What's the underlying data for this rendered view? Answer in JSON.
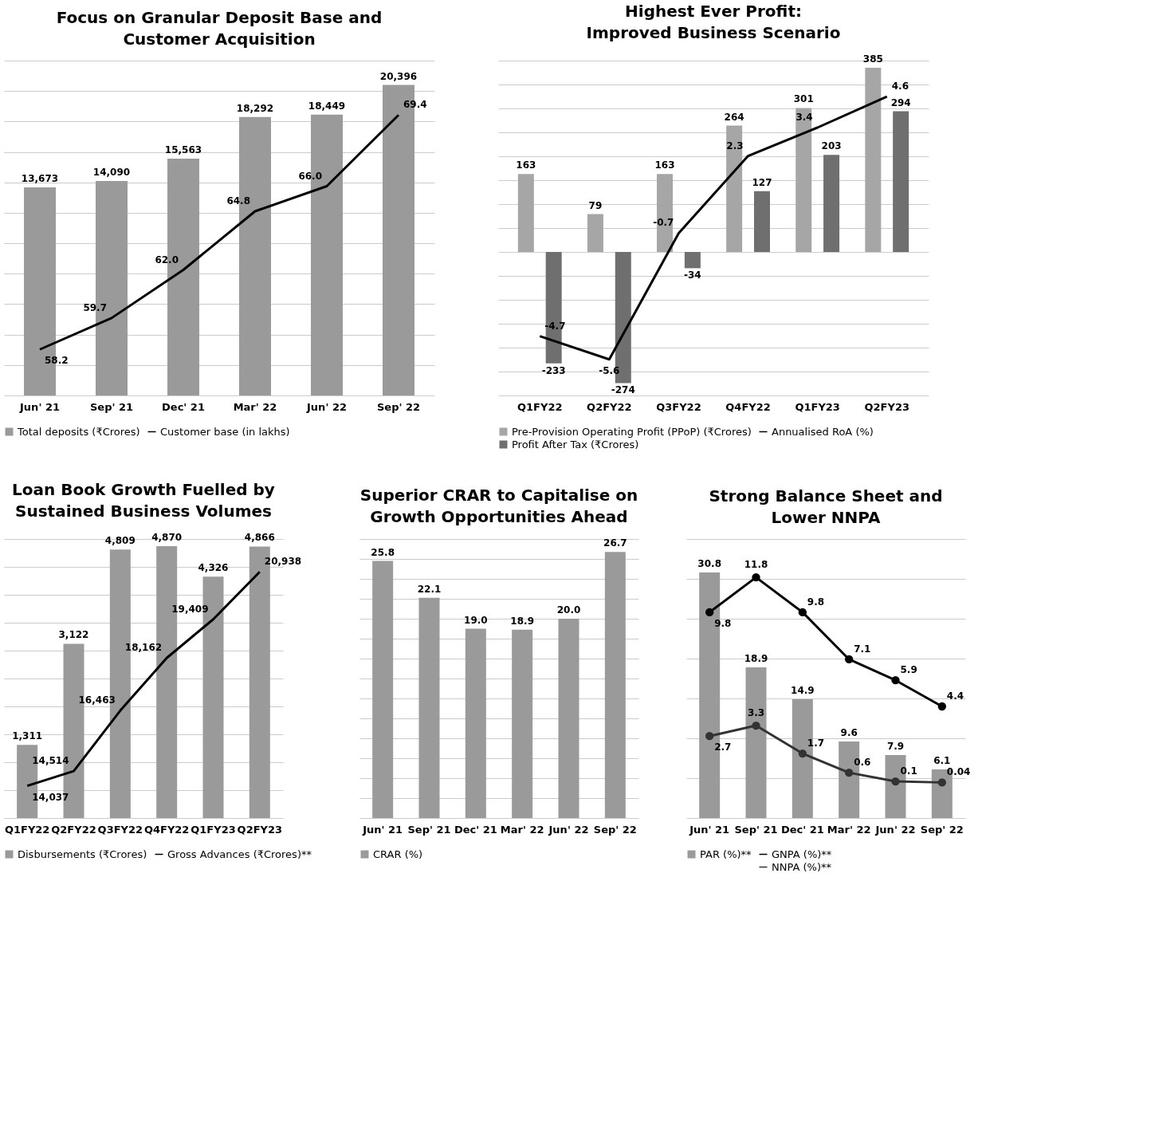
{
  "chart_data": [
    {
      "type": "bar",
      "title": "Focus on Granular Deposit Base and\nCustomer Acquisition",
      "categories": [
        "Jun' 21",
        "Sep' 21",
        "Dec' 21",
        "Mar' 22",
        "Jun' 22",
        "Sep' 22"
      ],
      "legend": "bottom",
      "grid": "y",
      "tick_labels": "x",
      "series": [
        {
          "name": "Total deposits (₹Crores)",
          "type": "bar",
          "color": "#9a9a9a",
          "values": [
            13673,
            14090,
            15563,
            18292,
            18449,
            20396
          ],
          "value_labels": [
            "13,673",
            "14,090",
            "15,563",
            "18,292",
            "18,449",
            "20,396"
          ]
        },
        {
          "name": "Customer base (in lakhs)",
          "type": "line",
          "axis": "y2",
          "color": "#000000",
          "values": [
            58.2,
            59.7,
            62.0,
            64.8,
            66.0,
            69.4
          ],
          "value_labels": [
            "58.2",
            "59.7",
            "62.0",
            "64.8",
            "66.0",
            "69.4"
          ]
        }
      ]
    },
    {
      "type": "bar",
      "title": "Highest Ever Profit:\nImproved Business Scenario",
      "categories": [
        "Q1FY22",
        "Q2FY22",
        "Q3FY22",
        "Q4FY22",
        "Q1FY23",
        "Q2FY23"
      ],
      "legend": "bottom",
      "grid": "y",
      "tick_labels": "x",
      "series": [
        {
          "name": "Pre-Provision Operating Profit (PPoP) (₹Crores)",
          "type": "bar",
          "color": "#a6a6a6",
          "values": [
            163,
            79,
            163,
            264,
            301,
            385
          ],
          "value_labels": [
            "163",
            "79",
            "163",
            "264",
            "301",
            "385"
          ]
        },
        {
          "name": "Profit After Tax (₹Crores)",
          "type": "bar",
          "color": "#6f6f6f",
          "values": [
            -233,
            -274,
            -34,
            127,
            203,
            294
          ],
          "value_labels": [
            "-233",
            "-274",
            "-34",
            "127",
            "203",
            "294"
          ]
        },
        {
          "name": "Annualised RoA (%)",
          "type": "line",
          "axis": "y2",
          "color": "#000000",
          "values": [
            -4.7,
            -5.6,
            -0.7,
            2.3,
            3.4,
            4.6
          ],
          "value_labels": [
            "-4.7",
            "-5.6",
            "-0.7",
            "2.3",
            "3.4",
            "4.6"
          ]
        }
      ]
    },
    {
      "type": "bar",
      "title": "Loan Book Growth Fuelled by\nSustained Business Volumes",
      "categories": [
        "Q1FY22",
        "Q2FY22",
        "Q3FY22",
        "Q4FY22",
        "Q1FY23",
        "Q2FY23"
      ],
      "legend": "bottom",
      "grid": "y",
      "tick_labels": "x",
      "series": [
        {
          "name": "Disbursements (₹Crores)",
          "type": "bar",
          "color": "#9a9a9a",
          "values": [
            1311,
            3122,
            4809,
            4870,
            4326,
            4866
          ],
          "value_labels": [
            "1,311",
            "3,122",
            "4,809",
            "4,870",
            "4,326",
            "4,866"
          ]
        },
        {
          "name": "Gross Advances (₹Crores)**",
          "type": "line",
          "axis": "y2",
          "color": "#000000",
          "values": [
            14037,
            14514,
            16463,
            18162,
            19409,
            20938
          ],
          "value_labels": [
            "14,037",
            "14,514",
            "16,463",
            "18,162",
            "19,409",
            "20,938"
          ]
        }
      ]
    },
    {
      "type": "bar",
      "title": "Superior CRAR to Capitalise on\nGrowth Opportunities Ahead",
      "categories": [
        "Jun' 21",
        "Sep' 21",
        "Dec' 21",
        "Mar' 22",
        "Jun' 22",
        "Sep' 22"
      ],
      "legend": "bottom",
      "grid": "y",
      "tick_labels": "x",
      "series": [
        {
          "name": "CRAR (%)",
          "type": "bar",
          "color": "#9a9a9a",
          "values": [
            25.8,
            22.1,
            19.0,
            18.9,
            20.0,
            26.7
          ],
          "value_labels": [
            "25.8",
            "22.1",
            "19.0",
            "18.9",
            "20.0",
            "26.7"
          ]
        }
      ]
    },
    {
      "type": "bar",
      "title": "Strong Balance Sheet and\nLower NNPA",
      "categories": [
        "Jun' 21",
        "Sep' 21",
        "Dec' 21",
        "Mar' 22",
        "Jun' 22",
        "Sep' 22"
      ],
      "legend": "bottom",
      "grid": "y",
      "tick_labels": "x",
      "series": [
        {
          "name": "PAR (%)**",
          "type": "bar",
          "color": "#9a9a9a",
          "values": [
            30.8,
            18.9,
            14.9,
            9.6,
            7.9,
            6.1
          ],
          "value_labels": [
            "30.8",
            "18.9",
            "14.9",
            "9.6",
            "7.9",
            "6.1"
          ]
        },
        {
          "name": "GNPA (%)**",
          "type": "line",
          "axis": "y2",
          "marker": "circle",
          "color": "#000000",
          "values": [
            9.8,
            11.8,
            9.8,
            7.1,
            5.9,
            4.4
          ],
          "value_labels": [
            "9.8",
            "11.8",
            "9.8",
            "7.1",
            "5.9",
            "4.4"
          ]
        },
        {
          "name": "NNPA (%)**",
          "type": "line",
          "axis": "y2",
          "marker": "circle",
          "color": "#333333",
          "values": [
            2.7,
            3.3,
            1.7,
            0.6,
            0.1,
            0.04
          ],
          "value_labels": [
            "2.7",
            "3.3",
            "1.7",
            "0.6",
            "0.1",
            "0.04"
          ]
        }
      ]
    }
  ]
}
